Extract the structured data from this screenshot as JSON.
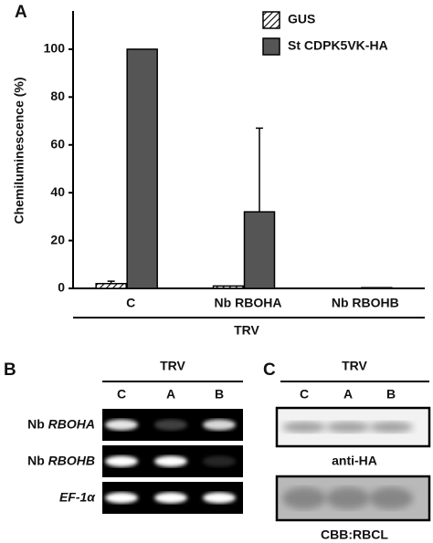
{
  "chart_data": {
    "type": "bar",
    "panel_label": "A",
    "y_label": "Chemiluminescence (%)",
    "categories": [
      "C",
      "Nb RBOHA",
      "Nb RBOHB"
    ],
    "group_label": "TRV",
    "series": [
      {
        "name": "GUS",
        "color": "#ffffff",
        "hatch": true,
        "values": [
          2,
          1,
          0
        ],
        "errors": [
          1,
          null,
          null
        ]
      },
      {
        "name": "St CDPK5VK-HA",
        "color": "#555555",
        "hatch": false,
        "values": [
          100,
          32,
          0.3
        ],
        "errors": [
          null,
          35,
          null
        ]
      }
    ],
    "ylim": [
      0,
      116
    ],
    "yticks": [
      0,
      20,
      40,
      60,
      80,
      100
    ],
    "legend": "upper right",
    "grid": false
  },
  "panel_b": {
    "label": "B",
    "group": "TRV",
    "lanes": [
      "C",
      "A",
      "B"
    ],
    "rows": [
      {
        "prefix": "Nb",
        "gene": "RBOHA"
      },
      {
        "prefix": "Nb",
        "gene": "RBOHB"
      },
      {
        "gene": "EF-1α"
      }
    ]
  },
  "panel_c": {
    "label": "C",
    "group": "TRV",
    "lanes": [
      "C",
      "A",
      "B"
    ],
    "blots": [
      "anti-HA",
      "CBB:RBCL"
    ]
  }
}
